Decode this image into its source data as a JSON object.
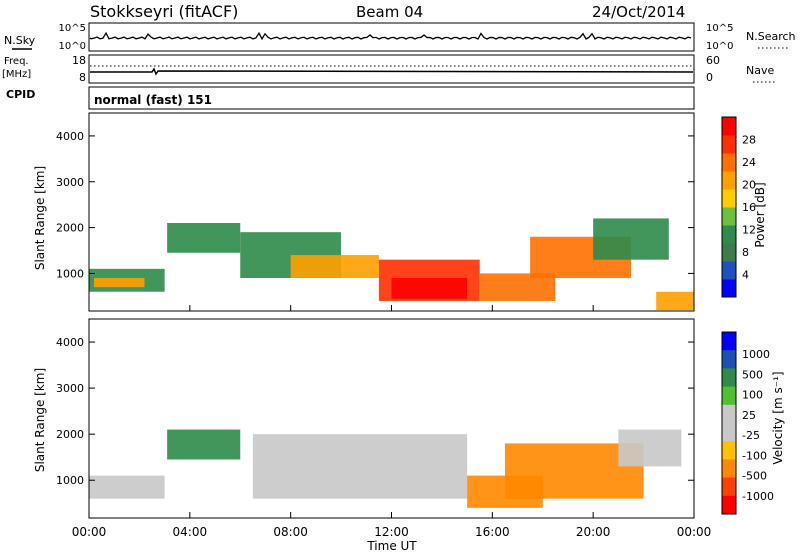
{
  "header": {
    "radar": "Stokkseyri (fitACF)",
    "beam": "Beam 04",
    "date": "24/Oct/2014"
  },
  "nsky_panel": {
    "left_label": "N.Sky",
    "left_ticks": [
      "10^5",
      "10^0"
    ],
    "right_ticks": [
      "10^5",
      "10^0"
    ],
    "right_label": "N.Search"
  },
  "freq_panel": {
    "left_label_1": "Freq.",
    "left_label_2": "[MHz]",
    "left_ticks": [
      "18",
      "8"
    ],
    "right_ticks": [
      "60",
      "0"
    ],
    "right_label": "Nave"
  },
  "cpid_panel": {
    "label": "CPID",
    "mode": "normal (fast) 151"
  },
  "colors": {
    "power": [
      "#0000ff",
      "#2050c0",
      "#3c7a50",
      "#2e8b4a",
      "#6cc040",
      "#ffcc00",
      "#ffa000",
      "#ff7000",
      "#ff3000",
      "#ff0000"
    ],
    "velocity": [
      "#0000ff",
      "#1e50b4",
      "#2e8b4a",
      "#50c030",
      "#c8c8c8",
      "#c8c8c8",
      "#ffc000",
      "#ff8800",
      "#ff4000",
      "#ff0000"
    ]
  },
  "chart_data": [
    {
      "type": "heatmap",
      "quantity": "Power",
      "ylabel": "Slant Range [km]",
      "yticks": [
        "1000",
        "2000",
        "3000",
        "4000"
      ],
      "ylim": [
        180,
        4500
      ],
      "colorbar_label": "Power [dB]",
      "colorbar_ticks": [
        "4",
        "8",
        "12",
        "16",
        "20",
        "24",
        "28"
      ],
      "colorbar_range": [
        0,
        32
      ],
      "regions": [
        {
          "t0": 0.0,
          "t1": 3.0,
          "r0": 600,
          "r1": 1100,
          "value": 10
        },
        {
          "t0": 0.2,
          "t1": 2.2,
          "r0": 700,
          "r1": 900,
          "value": 20
        },
        {
          "t0": 3.1,
          "t1": 6.0,
          "r0": 1450,
          "r1": 2100,
          "value": 10
        },
        {
          "t0": 6.0,
          "t1": 10.0,
          "r0": 900,
          "r1": 1900,
          "value": 12
        },
        {
          "t0": 8.0,
          "t1": 11.5,
          "r0": 900,
          "r1": 1400,
          "value": 22
        },
        {
          "t0": 11.5,
          "t1": 15.5,
          "r0": 400,
          "r1": 1300,
          "value": 28
        },
        {
          "t0": 12.0,
          "t1": 15.0,
          "r0": 450,
          "r1": 900,
          "value": 31
        },
        {
          "t0": 15.5,
          "t1": 18.5,
          "r0": 400,
          "r1": 1000,
          "value": 24
        },
        {
          "t0": 17.5,
          "t1": 21.5,
          "r0": 900,
          "r1": 1800,
          "value": 24
        },
        {
          "t0": 20.0,
          "t1": 23.0,
          "r0": 1300,
          "r1": 2200,
          "value": 12
        },
        {
          "t0": 22.5,
          "t1": 24.0,
          "r0": 200,
          "r1": 600,
          "value": 20
        }
      ]
    },
    {
      "type": "heatmap",
      "quantity": "Velocity",
      "ylabel": "Slant Range [km]",
      "yticks": [
        "1000",
        "2000",
        "3000",
        "4000"
      ],
      "ylim": [
        180,
        4500
      ],
      "xlabel": "Time UT",
      "xticks": [
        "00:00",
        "04:00",
        "08:00",
        "12:00",
        "16:00",
        "20:00",
        "00:00"
      ],
      "xlim": [
        0,
        24
      ],
      "colorbar_label": "Velocity [m s⁻¹]",
      "colorbar_ticks": [
        "1000",
        "500",
        "100",
        "25",
        "-25",
        "-100",
        "-500",
        "-1000"
      ],
      "regions": [
        {
          "t0": 0.0,
          "t1": 3.0,
          "r0": 600,
          "r1": 1100,
          "value": 0
        },
        {
          "t0": 3.1,
          "t1": 6.0,
          "r0": 1450,
          "r1": 2100,
          "value": 120
        },
        {
          "t0": 6.5,
          "t1": 15.0,
          "r0": 600,
          "r1": 2000,
          "value": 0
        },
        {
          "t0": 15.0,
          "t1": 18.0,
          "r0": 400,
          "r1": 1100,
          "value": -400
        },
        {
          "t0": 16.5,
          "t1": 22.0,
          "r0": 600,
          "r1": 1800,
          "value": -400
        },
        {
          "t0": 21.0,
          "t1": 23.5,
          "r0": 1300,
          "r1": 2100,
          "value": 0
        }
      ]
    }
  ]
}
